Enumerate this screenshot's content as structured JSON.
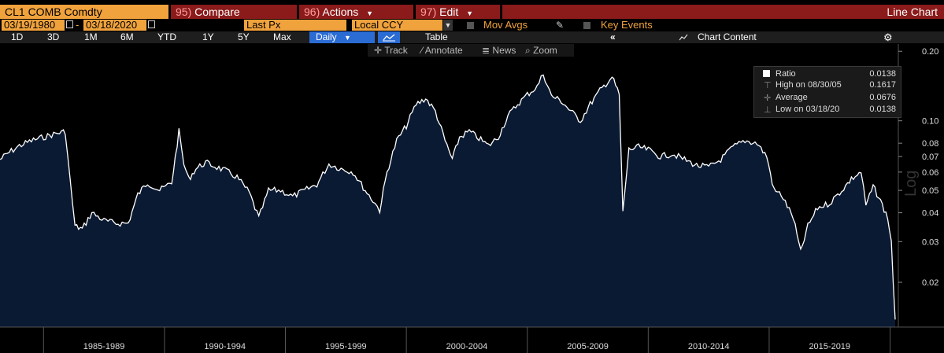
{
  "header": {
    "ticker": "CL1 COMB Comdty",
    "compare_num": "95)",
    "compare_label": "Compare",
    "actions_num": "96)",
    "actions_label": "Actions",
    "edit_num": "97)",
    "edit_label": "Edit",
    "chart_title": "Line Chart"
  },
  "settings": {
    "start_date": "03/19/1980",
    "separator": "-",
    "end_date": "03/18/2020",
    "field": "Last Px",
    "currency": "Local CCY",
    "mov_avgs": "Mov Avgs",
    "key_events": "Key Events"
  },
  "ranges": [
    "1D",
    "3D",
    "1M",
    "6M",
    "YTD",
    "1Y",
    "5Y",
    "Max"
  ],
  "frequency": "Daily",
  "table_label": "Table",
  "chart_content_label": "Chart Content",
  "tools": [
    "Track",
    "Annotate",
    "News",
    "Zoom"
  ],
  "legend": {
    "series": "Ratio",
    "series_value": "0.0138",
    "high_label": "High on 08/30/05",
    "high_value": "0.1617",
    "avg_label": "Average",
    "avg_value": "0.0676",
    "low_label": "Low on 03/18/20",
    "low_value": "0.0138"
  },
  "colors": {
    "area_fill": "#0b1a33",
    "line": "#ffffff",
    "ticker_bg": "#f0a23c",
    "menu_bg": "#8b1a1a",
    "selected_bg": "#2b6cd4"
  },
  "chart_data": {
    "type": "area",
    "scale": "log",
    "ylim": [
      0.0138,
      0.2
    ],
    "y_ticks": [
      "0.20",
      "0.10",
      "0.08",
      "0.07",
      "0.06",
      "0.05",
      "0.04",
      "0.03",
      "0.02"
    ],
    "y_tick_values": [
      0.2,
      0.1,
      0.08,
      0.07,
      0.06,
      0.05,
      0.04,
      0.03,
      0.02
    ],
    "x_tick_labels": [
      "1985-1989",
      "1990-1994",
      "1995-1999",
      "2000-2004",
      "2005-2009",
      "2010-2014",
      "2015-2019"
    ],
    "x_tick_ranges": [
      [
        1985,
        1990
      ],
      [
        1990,
        1995
      ],
      [
        1995,
        2000
      ],
      [
        2000,
        2005
      ],
      [
        2005,
        2010
      ],
      [
        2010,
        2015
      ],
      [
        2015,
        2020
      ]
    ],
    "xlim": [
      1983.2,
      2020.21
    ],
    "series": [
      {
        "x": [
          1983.2,
          1983.5,
          1984.0,
          1984.5,
          1985.0,
          1985.5,
          1985.9,
          1986.1,
          1986.3,
          1986.6,
          1987.0,
          1987.5,
          1988.0,
          1988.5,
          1988.9,
          1989.3,
          1989.8,
          1990.3,
          1990.6,
          1990.8,
          1991.0,
          1991.3,
          1991.7,
          1992.0,
          1992.5,
          1993.0,
          1993.5,
          1993.9,
          1994.3,
          1994.8,
          1995.3,
          1995.8,
          1996.3,
          1996.8,
          1997.3,
          1997.8,
          1998.3,
          1998.7,
          1998.9,
          1999.2,
          1999.6,
          2000.0,
          2000.4,
          2000.8,
          2001.2,
          2001.6,
          2001.9,
          2002.2,
          2002.6,
          2003.0,
          2003.4,
          2003.8,
          2004.2,
          2004.6,
          2005.0,
          2005.4,
          2005.66,
          2006.0,
          2006.4,
          2006.8,
          2007.2,
          2007.6,
          2008.0,
          2008.5,
          2008.8,
          2008.95,
          2009.2,
          2009.6,
          2010.0,
          2010.5,
          2011.0,
          2011.5,
          2012.0,
          2012.5,
          2013.0,
          2013.5,
          2014.0,
          2014.5,
          2014.9,
          2015.2,
          2015.5,
          2016.0,
          2016.3,
          2016.6,
          2017.0,
          2017.5,
          2018.0,
          2018.4,
          2018.8,
          2019.0,
          2019.3,
          2019.6,
          2019.9,
          2020.05,
          2020.21
        ],
        "y": [
          0.068,
          0.072,
          0.078,
          0.082,
          0.085,
          0.088,
          0.09,
          0.055,
          0.035,
          0.034,
          0.04,
          0.037,
          0.036,
          0.036,
          0.048,
          0.054,
          0.05,
          0.054,
          0.09,
          0.065,
          0.056,
          0.062,
          0.066,
          0.064,
          0.061,
          0.057,
          0.049,
          0.038,
          0.05,
          0.05,
          0.047,
          0.05,
          0.053,
          0.065,
          0.062,
          0.06,
          0.05,
          0.044,
          0.041,
          0.06,
          0.082,
          0.095,
          0.118,
          0.125,
          0.11,
          0.082,
          0.068,
          0.085,
          0.09,
          0.084,
          0.078,
          0.085,
          0.105,
          0.118,
          0.13,
          0.14,
          0.16,
          0.128,
          0.122,
          0.11,
          0.1,
          0.118,
          0.135,
          0.155,
          0.13,
          0.04,
          0.075,
          0.077,
          0.075,
          0.07,
          0.072,
          0.068,
          0.064,
          0.063,
          0.068,
          0.077,
          0.082,
          0.08,
          0.07,
          0.05,
          0.048,
          0.038,
          0.027,
          0.035,
          0.042,
          0.044,
          0.05,
          0.056,
          0.06,
          0.043,
          0.052,
          0.045,
          0.038,
          0.03,
          0.0138
        ]
      }
    ]
  }
}
